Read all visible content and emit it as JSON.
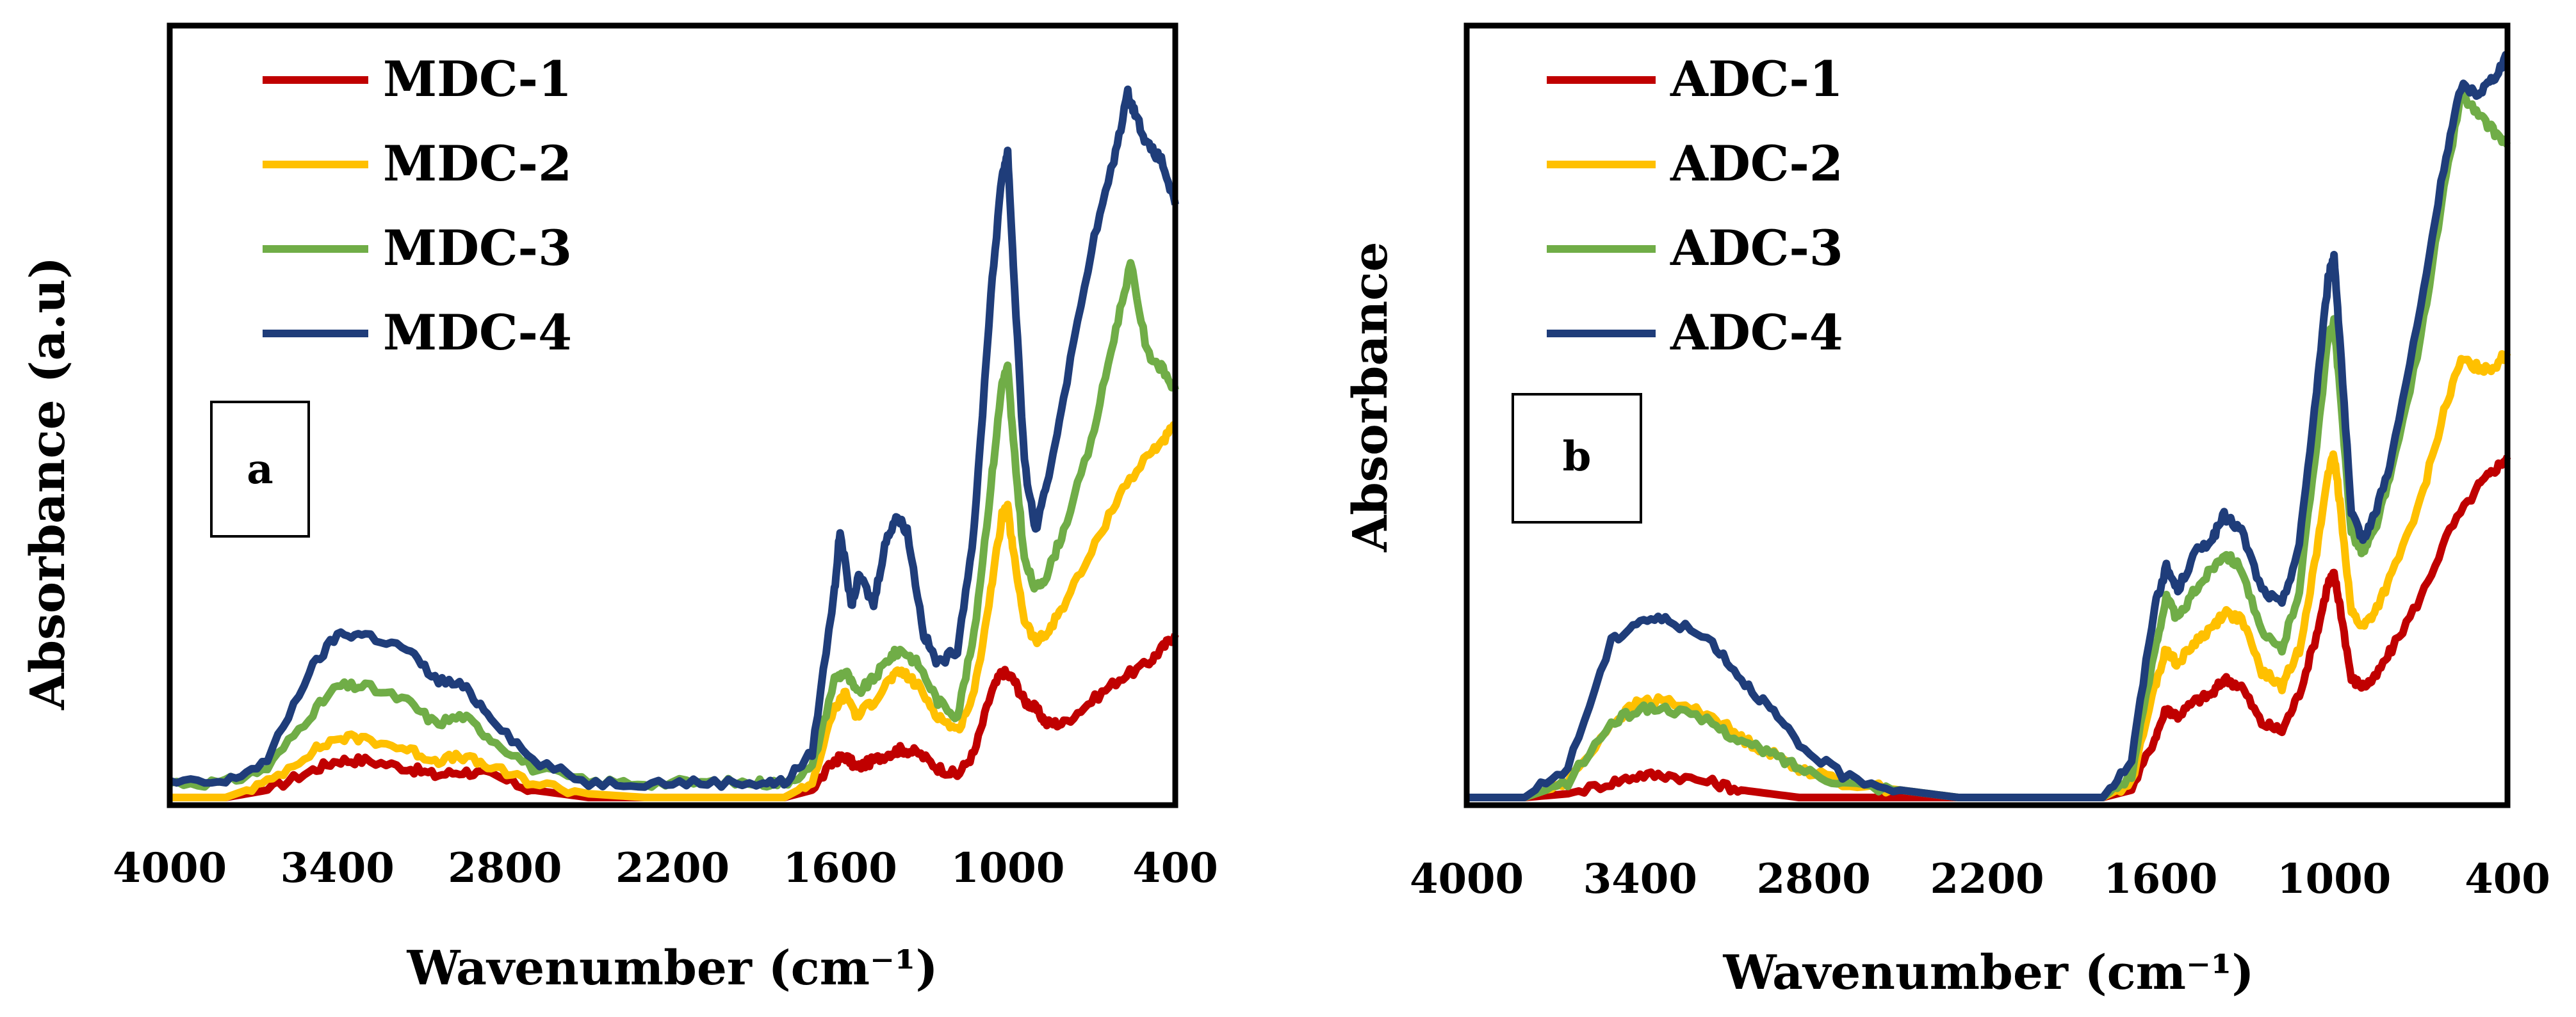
{
  "chart_data": [
    {
      "type": "line",
      "panel_label": "a",
      "xlabel": "Wavenumber (cm⁻¹)",
      "ylabel": "Absorbance (a.u)",
      "xlim": [
        4000,
        400
      ],
      "ylim": [
        0,
        1
      ],
      "x_ticks": [
        "4000",
        "3400",
        "2800",
        "2200",
        "1600",
        "1000",
        "400"
      ],
      "x_tick_values": [
        4000,
        3400,
        2800,
        2200,
        1600,
        1000,
        400
      ],
      "legend_position": "top-left",
      "series": [
        {
          "name": "MDC-1",
          "color": "#c00000",
          "x": [
            4000,
            3800,
            3650,
            3500,
            3400,
            3300,
            3150,
            3050,
            2950,
            2850,
            2700,
            2500,
            2300,
            2100,
            1900,
            1800,
            1700,
            1620,
            1580,
            1540,
            1480,
            1420,
            1380,
            1320,
            1250,
            1180,
            1120,
            1060,
            1020,
            980,
            940,
            900,
            860,
            800,
            700,
            600,
            500,
            450,
            400
          ],
          "y": [
            0.0,
            0.0,
            0.01,
            0.035,
            0.05,
            0.05,
            0.04,
            0.03,
            0.035,
            0.03,
            0.01,
            0.0,
            0.0,
            0.0,
            0.0,
            0.0,
            0.01,
            0.05,
            0.055,
            0.04,
            0.05,
            0.06,
            0.065,
            0.06,
            0.04,
            0.03,
            0.06,
            0.14,
            0.17,
            0.16,
            0.13,
            0.12,
            0.1,
            0.1,
            0.13,
            0.16,
            0.18,
            0.2,
            0.22
          ]
        },
        {
          "name": "MDC-2",
          "color": "#ffc000",
          "x": [
            4000,
            3800,
            3650,
            3500,
            3400,
            3300,
            3150,
            3050,
            2950,
            2850,
            2700,
            2500,
            2300,
            2100,
            1900,
            1800,
            1700,
            1620,
            1580,
            1540,
            1480,
            1420,
            1380,
            1320,
            1250,
            1180,
            1120,
            1060,
            1020,
            1000,
            980,
            940,
            900,
            860,
            800,
            700,
            600,
            500,
            450,
            400
          ],
          "y": [
            0.0,
            0.0,
            0.02,
            0.06,
            0.08,
            0.08,
            0.065,
            0.05,
            0.055,
            0.04,
            0.02,
            0.005,
            0.0,
            0.0,
            0.0,
            0.0,
            0.02,
            0.12,
            0.14,
            0.11,
            0.13,
            0.16,
            0.17,
            0.15,
            0.11,
            0.09,
            0.14,
            0.28,
            0.38,
            0.39,
            0.33,
            0.24,
            0.21,
            0.22,
            0.26,
            0.33,
            0.41,
            0.46,
            0.48,
            0.5
          ]
        },
        {
          "name": "MDC-3",
          "color": "#70ad47",
          "x": [
            4000,
            3800,
            3650,
            3500,
            3400,
            3300,
            3150,
            3050,
            2950,
            2850,
            2700,
            2500,
            2300,
            2100,
            1900,
            1800,
            1700,
            1620,
            1580,
            1540,
            1480,
            1420,
            1380,
            1320,
            1250,
            1180,
            1120,
            1060,
            1020,
            1000,
            980,
            940,
            900,
            860,
            800,
            700,
            620,
            560,
            500,
            450,
            400
          ],
          "y": [
            0.02,
            0.02,
            0.04,
            0.11,
            0.15,
            0.15,
            0.13,
            0.1,
            0.11,
            0.08,
            0.04,
            0.02,
            0.02,
            0.02,
            0.02,
            0.02,
            0.04,
            0.16,
            0.17,
            0.14,
            0.16,
            0.19,
            0.2,
            0.18,
            0.13,
            0.11,
            0.22,
            0.42,
            0.56,
            0.58,
            0.48,
            0.32,
            0.28,
            0.3,
            0.36,
            0.48,
            0.62,
            0.72,
            0.6,
            0.58,
            0.55
          ]
        },
        {
          "name": "MDC-4",
          "color": "#1f3d7a",
          "x": [
            4000,
            3800,
            3650,
            3500,
            3400,
            3300,
            3150,
            3050,
            2950,
            2850,
            2700,
            2500,
            2300,
            2100,
            1900,
            1800,
            1700,
            1620,
            1600,
            1560,
            1530,
            1480,
            1440,
            1400,
            1360,
            1300,
            1250,
            1180,
            1120,
            1060,
            1020,
            1000,
            980,
            940,
            900,
            860,
            800,
            700,
            620,
            570,
            540,
            500,
            450,
            400
          ],
          "y": [
            0.02,
            0.02,
            0.05,
            0.17,
            0.22,
            0.22,
            0.2,
            0.16,
            0.15,
            0.11,
            0.05,
            0.02,
            0.02,
            0.02,
            0.02,
            0.02,
            0.06,
            0.28,
            0.36,
            0.26,
            0.3,
            0.26,
            0.34,
            0.38,
            0.36,
            0.22,
            0.18,
            0.2,
            0.36,
            0.68,
            0.84,
            0.87,
            0.72,
            0.45,
            0.36,
            0.42,
            0.54,
            0.74,
            0.86,
            0.95,
            0.92,
            0.88,
            0.86,
            0.8
          ]
        }
      ]
    },
    {
      "type": "line",
      "panel_label": "b",
      "xlabel": "Wavenumber (cm⁻¹)",
      "ylabel": "Absorbance",
      "xlim": [
        4000,
        400
      ],
      "ylim": [
        0,
        1
      ],
      "x_ticks": [
        "4000",
        "3400",
        "2800",
        "2200",
        "1600",
        "1000",
        "400"
      ],
      "x_tick_values": [
        4000,
        3400,
        2800,
        2200,
        1600,
        1000,
        400
      ],
      "legend_position": "top-left",
      "series": [
        {
          "name": "ADC-1",
          "color": "#c00000",
          "x": [
            4000,
            3800,
            3650,
            3500,
            3400,
            3300,
            3150,
            3050,
            2950,
            2850,
            2700,
            2500,
            2300,
            2100,
            1900,
            1800,
            1700,
            1620,
            1580,
            1540,
            1480,
            1420,
            1380,
            1320,
            1250,
            1180,
            1120,
            1060,
            1020,
            1000,
            980,
            940,
            900,
            860,
            800,
            700,
            600,
            500,
            450,
            400
          ],
          "y": [
            0.0,
            0.0,
            0.005,
            0.02,
            0.03,
            0.03,
            0.02,
            0.01,
            0.005,
            0.0,
            0.0,
            0.0,
            0.0,
            0.0,
            0.0,
            0.0,
            0.01,
            0.08,
            0.12,
            0.11,
            0.13,
            0.14,
            0.16,
            0.15,
            0.1,
            0.09,
            0.14,
            0.22,
            0.29,
            0.3,
            0.26,
            0.16,
            0.15,
            0.16,
            0.2,
            0.27,
            0.36,
            0.42,
            0.44,
            0.46
          ]
        },
        {
          "name": "ADC-2",
          "color": "#ffc000",
          "x": [
            4000,
            3800,
            3650,
            3500,
            3400,
            3300,
            3150,
            3050,
            2950,
            2850,
            2700,
            2500,
            2300,
            2100,
            1900,
            1800,
            1700,
            1620,
            1580,
            1540,
            1480,
            1420,
            1380,
            1320,
            1250,
            1180,
            1120,
            1060,
            1020,
            1000,
            980,
            940,
            900,
            860,
            800,
            700,
            620,
            560,
            500,
            450,
            400
          ],
          "y": [
            0.0,
            0.0,
            0.02,
            0.1,
            0.13,
            0.13,
            0.11,
            0.08,
            0.06,
            0.04,
            0.02,
            0.01,
            0.0,
            0.0,
            0.0,
            0.0,
            0.02,
            0.15,
            0.2,
            0.18,
            0.21,
            0.23,
            0.25,
            0.24,
            0.17,
            0.15,
            0.2,
            0.33,
            0.44,
            0.46,
            0.4,
            0.25,
            0.23,
            0.25,
            0.3,
            0.4,
            0.52,
            0.59,
            0.58,
            0.58,
            0.6
          ]
        },
        {
          "name": "ADC-3",
          "color": "#70ad47",
          "x": [
            4000,
            3800,
            3650,
            3500,
            3400,
            3300,
            3150,
            3050,
            2950,
            2850,
            2700,
            2500,
            2300,
            2100,
            1900,
            1800,
            1700,
            1620,
            1580,
            1540,
            1480,
            1420,
            1380,
            1320,
            1250,
            1180,
            1120,
            1060,
            1020,
            1000,
            980,
            940,
            900,
            860,
            800,
            700,
            620,
            560,
            500,
            450,
            400
          ],
          "y": [
            0.0,
            0.0,
            0.02,
            0.1,
            0.12,
            0.12,
            0.1,
            0.075,
            0.06,
            0.04,
            0.02,
            0.01,
            0.0,
            0.0,
            0.0,
            0.0,
            0.03,
            0.2,
            0.27,
            0.24,
            0.28,
            0.31,
            0.33,
            0.31,
            0.22,
            0.2,
            0.28,
            0.48,
            0.62,
            0.64,
            0.55,
            0.36,
            0.33,
            0.36,
            0.44,
            0.62,
            0.82,
            0.95,
            0.92,
            0.9,
            0.88
          ]
        },
        {
          "name": "ADC-4",
          "color": "#1f3d7a",
          "x": [
            4000,
            3800,
            3650,
            3500,
            3400,
            3300,
            3150,
            3050,
            2950,
            2850,
            2700,
            2500,
            2300,
            2100,
            1900,
            1800,
            1700,
            1620,
            1580,
            1540,
            1480,
            1420,
            1380,
            1320,
            1250,
            1180,
            1120,
            1060,
            1020,
            1000,
            980,
            940,
            900,
            860,
            800,
            700,
            620,
            560,
            500,
            450,
            400
          ],
          "y": [
            0.0,
            0.0,
            0.04,
            0.21,
            0.24,
            0.24,
            0.21,
            0.16,
            0.12,
            0.07,
            0.03,
            0.01,
            0.0,
            0.0,
            0.0,
            0.0,
            0.05,
            0.26,
            0.31,
            0.28,
            0.33,
            0.35,
            0.38,
            0.36,
            0.28,
            0.26,
            0.34,
            0.55,
            0.7,
            0.73,
            0.62,
            0.38,
            0.35,
            0.38,
            0.46,
            0.66,
            0.85,
            0.96,
            0.95,
            0.97,
            1.0
          ]
        }
      ]
    }
  ]
}
